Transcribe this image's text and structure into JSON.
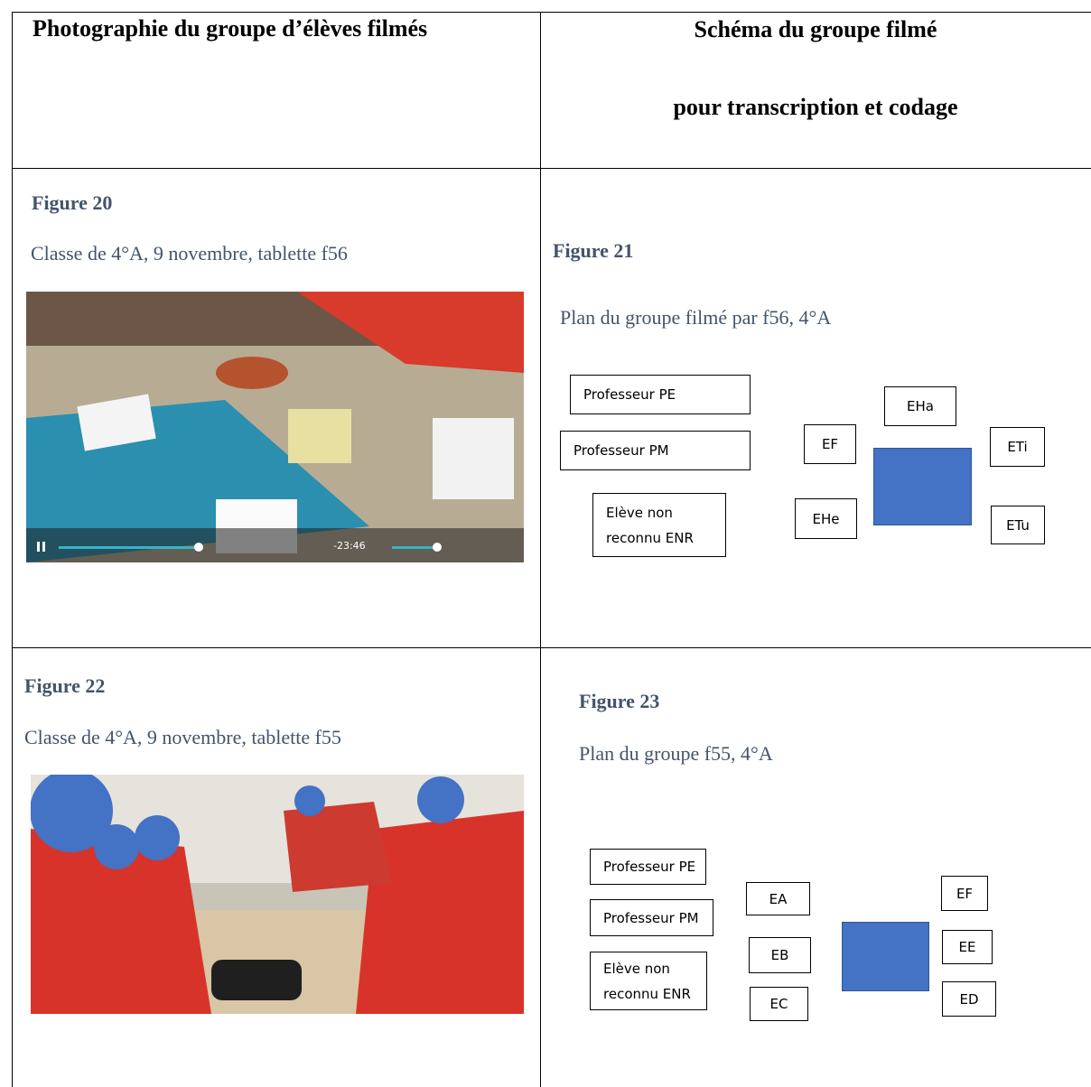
{
  "header": {
    "left": "Photographie du groupe d’élèves filmés",
    "right": [
      "Schéma du groupe filmé",
      "pour transcription et codage"
    ]
  },
  "rows": [
    {
      "photo": {
        "figure": "Figure 20",
        "caption": "Classe de 4°A, 9 novembre, tablette f56",
        "video_time": "-23:46"
      },
      "schema": {
        "figure": "Figure 21",
        "caption": "Plan du groupe filmé par f56, 4°A",
        "boxes": [
          "Professeur PE",
          "Professeur PM",
          "EHa",
          "EF",
          "ETi",
          "EHe",
          "ETu"
        ],
        "enr": [
          "Elève non",
          "reconnu ENR"
        ]
      }
    },
    {
      "photo": {
        "figure": "Figure 22",
        "caption": "Classe de 4°A, 9 novembre, tablette f55"
      },
      "schema": {
        "figure": "Figure 23",
        "caption": "Plan du groupe f55, 4°A",
        "boxes": [
          "Professeur PE",
          "Professeur PM",
          "EA",
          "EB",
          "EC",
          "EF",
          "EE",
          "ED"
        ],
        "enr": [
          "Elève non",
          "reconnu ENR"
        ]
      }
    }
  ]
}
